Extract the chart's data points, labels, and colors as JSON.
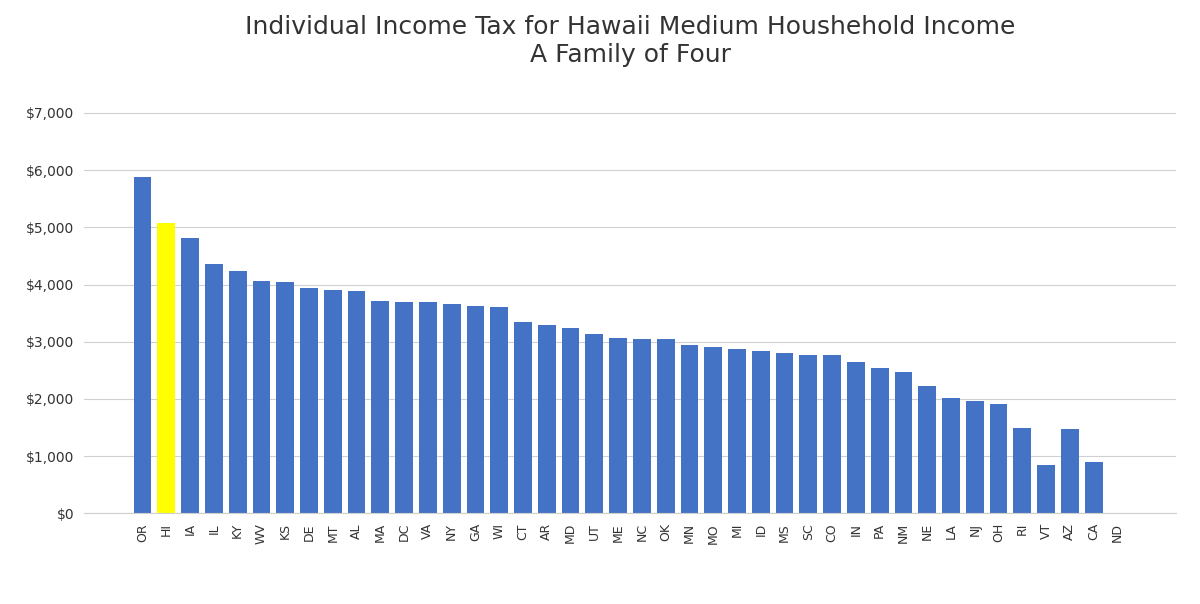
{
  "title": "Individual Income Tax for Hawaii Medium Houshehold Income\nA Family of Four",
  "categories": [
    "OR",
    "HI",
    "IA",
    "IL",
    "KY",
    "WV",
    "KS",
    "DE",
    "MT",
    "AL",
    "MA",
    "DC",
    "VA",
    "NY",
    "GA",
    "WI",
    "CT",
    "AR",
    "MD",
    "UT",
    "ME",
    "NC",
    "OK",
    "MN",
    "MO",
    "MI",
    "ID",
    "MS",
    "SC",
    "CO",
    "IN",
    "PA",
    "NM",
    "NE",
    "LA",
    "NJ",
    "OH",
    "RI",
    "VT",
    "AZ",
    "CA",
    "ND"
  ],
  "values": [
    5880,
    5070,
    4810,
    4360,
    4240,
    4060,
    4040,
    3940,
    3910,
    3880,
    3720,
    3700,
    3690,
    3660,
    3630,
    3610,
    3340,
    3290,
    3240,
    3140,
    3070,
    3050,
    3040,
    2950,
    2910,
    2880,
    2830,
    2800,
    2770,
    2760,
    2650,
    2540,
    2470,
    2230,
    2020,
    1960,
    1910,
    1500,
    850,
    1480,
    900,
    0
  ],
  "bar_color_default": "#4472C4",
  "bar_color_highlight": "#FFFF00",
  "highlight_index": 1,
  "ylim": [
    0,
    7600
  ],
  "yticks": [
    0,
    1000,
    2000,
    3000,
    4000,
    5000,
    6000,
    7000
  ],
  "ytick_labels": [
    "$0",
    "$1,000",
    "$2,000",
    "$3,000",
    "$4,000",
    "$5,000",
    "$6,000",
    "$7,000"
  ],
  "title_fontsize": 18,
  "background_color": "#ffffff",
  "grid_color": "#d0d0d0"
}
